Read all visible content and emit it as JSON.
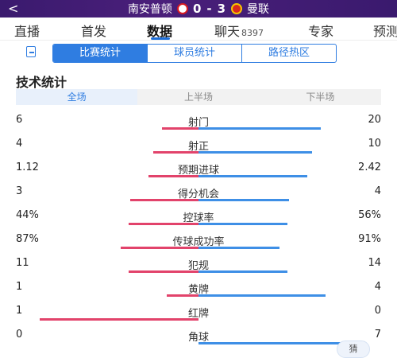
{
  "header": {
    "home_team": "南安普顿",
    "score_home": "0",
    "score_sep": "-",
    "score_away": "3",
    "away_team": "曼联"
  },
  "tabs": [
    {
      "label": "直播"
    },
    {
      "label": "首发"
    },
    {
      "label": "数据",
      "active": true
    },
    {
      "label": "聊天",
      "count": "8397"
    },
    {
      "label": "专家"
    },
    {
      "label": "预测"
    }
  ],
  "subtabs": [
    "比赛统计",
    "球员统计",
    "路径热区"
  ],
  "section_title": "技术统计",
  "periods": [
    "全场",
    "上半场",
    "下半场"
  ],
  "stats": [
    {
      "label": "射门",
      "home": "6",
      "away": "20",
      "home_n": 6,
      "away_n": 20
    },
    {
      "label": "射正",
      "home": "4",
      "away": "10",
      "home_n": 4,
      "away_n": 10
    },
    {
      "label": "预期进球",
      "home": "1.12",
      "away": "2.42",
      "home_n": 1.12,
      "away_n": 2.42
    },
    {
      "label": "得分机会",
      "home": "3",
      "away": "4",
      "home_n": 3,
      "away_n": 4
    },
    {
      "label": "控球率",
      "home": "44%",
      "away": "56%",
      "home_n": 44,
      "away_n": 56
    },
    {
      "label": "传球成功率",
      "home": "87%",
      "away": "91%",
      "home_n": 87,
      "away_n": 91
    },
    {
      "label": "犯规",
      "home": "11",
      "away": "14",
      "home_n": 11,
      "away_n": 14
    },
    {
      "label": "黄牌",
      "home": "1",
      "away": "4",
      "home_n": 1,
      "away_n": 4
    },
    {
      "label": "红牌",
      "home": "1",
      "away": "0",
      "home_n": 1,
      "away_n": 0
    },
    {
      "label": "角球",
      "home": "0",
      "away": "7",
      "home_n": 0,
      "away_n": 7
    }
  ],
  "colors": {
    "home_bar": "#e2436b",
    "away_bar": "#3e8fe6",
    "accent": "#2f7de1"
  },
  "bubble_text": "猜"
}
